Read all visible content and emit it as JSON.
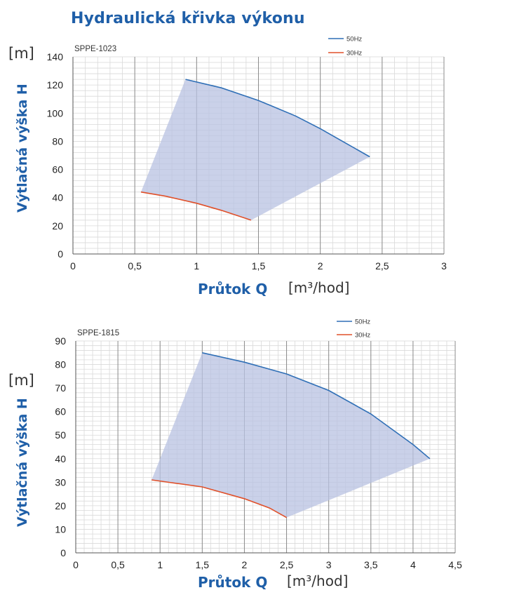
{
  "page_title": "Hydraulická křivka výkonu",
  "colors": {
    "title": "#1f5fa8",
    "series_50hz": "#2f6fb6",
    "series_30hz": "#e0502a",
    "fill": "#b8c2e2",
    "minor_grid": "#d9d9d9",
    "major_grid": "#8c8c8c"
  },
  "chart_data": [
    {
      "type": "area",
      "title": "SPPE-1023",
      "ylabel": "Výtlačná výška H",
      "yunit": "[m]",
      "xlabel": "Průtok Q",
      "xunit": "[m³/hod]",
      "xlim": [
        0,
        3
      ],
      "ylim": [
        0,
        140
      ],
      "xticks": [
        "0",
        "0,5",
        "1",
        "1,5",
        "2",
        "2,5",
        "3"
      ],
      "yticks": [
        "0",
        "20",
        "40",
        "60",
        "80",
        "100",
        "120",
        "140"
      ],
      "legend_position": "top-right",
      "series": [
        {
          "name": "50Hz",
          "x": [
            0.91,
            1.2,
            1.5,
            1.8,
            2.0,
            2.2,
            2.4
          ],
          "y": [
            124,
            118,
            109,
            98,
            89,
            79,
            69
          ]
        },
        {
          "name": "30Hz",
          "x": [
            0.55,
            0.75,
            1.0,
            1.2,
            1.44
          ],
          "y": [
            44,
            41,
            36,
            31,
            24
          ]
        }
      ]
    },
    {
      "type": "area",
      "title": "SPPE-1815",
      "ylabel": "Výtlačná výška H",
      "yunit": "[m]",
      "xlabel": "Průtok Q",
      "xunit": "[m³/hod]",
      "xlim": [
        0,
        4.5
      ],
      "ylim": [
        0,
        90
      ],
      "xticks": [
        "0",
        "0,5",
        "1",
        "1,5",
        "2",
        "2,5",
        "3",
        "3,5",
        "4",
        "4,5"
      ],
      "yticks": [
        "0",
        "10",
        "20",
        "30",
        "40",
        "50",
        "60",
        "70",
        "80",
        "90"
      ],
      "legend_position": "top-right",
      "series": [
        {
          "name": "50Hz",
          "x": [
            1.5,
            2.0,
            2.5,
            3.0,
            3.5,
            4.0,
            4.2
          ],
          "y": [
            85,
            81,
            76,
            69,
            59,
            46,
            40
          ]
        },
        {
          "name": "30Hz",
          "x": [
            0.9,
            1.5,
            2.0,
            2.3,
            2.5
          ],
          "y": [
            31,
            28,
            23,
            19,
            15
          ]
        }
      ]
    }
  ]
}
